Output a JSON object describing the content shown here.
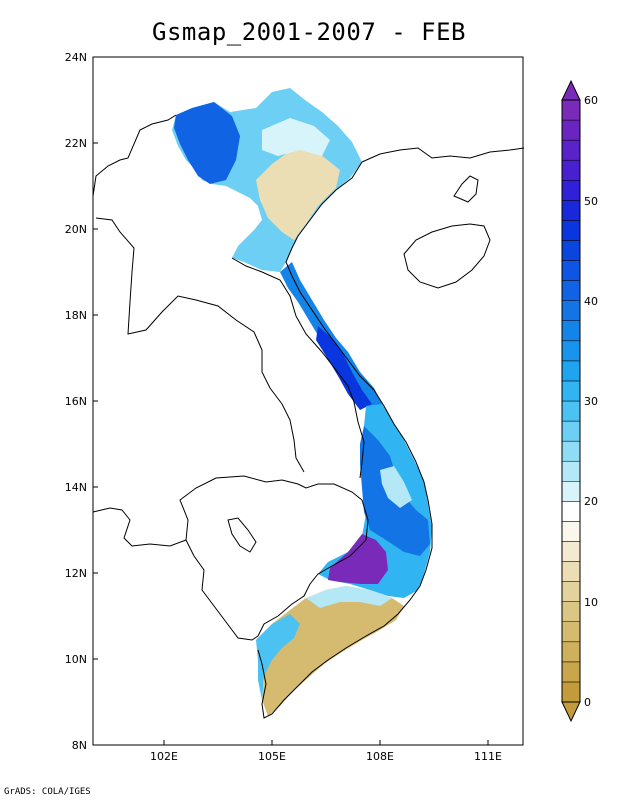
{
  "title": "Gsmap_2001-2007 - FEB",
  "credit": "GrADS: COLA/IGES",
  "map": {
    "lon_range": [
      100.2,
      112.1
    ],
    "lat_range": [
      8,
      24
    ],
    "lon_ticks": [
      "102E",
      "105E",
      "108E",
      "111E"
    ],
    "lat_ticks": [
      "8N",
      "10N",
      "12N",
      "14N",
      "16N",
      "18N",
      "20N",
      "22N",
      "24N"
    ]
  },
  "colorbar": {
    "min": 0,
    "max": 60,
    "labels": [
      "0",
      "10",
      "20",
      "30",
      "40",
      "50",
      "60"
    ],
    "colors": [
      "#c39b3a",
      "#c9a64b",
      "#cfb05c",
      "#d5bb70",
      "#dcc686",
      "#e3d29c",
      "#ebdeb5",
      "#f3ead0",
      "#fbf7ec",
      "#ffffff",
      "#d8f4fb",
      "#b4e8f7",
      "#90dcf4",
      "#6ccff3",
      "#4cc2f2",
      "#30b4f2",
      "#1fa5f0",
      "#1894ec",
      "#1584e8",
      "#1374e5",
      "#1064e3",
      "#0d55e2",
      "#0b45e0",
      "#0a36df",
      "#1a28dc",
      "#3020d7",
      "#4820d0",
      "#5a22c8",
      "#6a25c0",
      "#7a2ab8"
    ]
  }
}
